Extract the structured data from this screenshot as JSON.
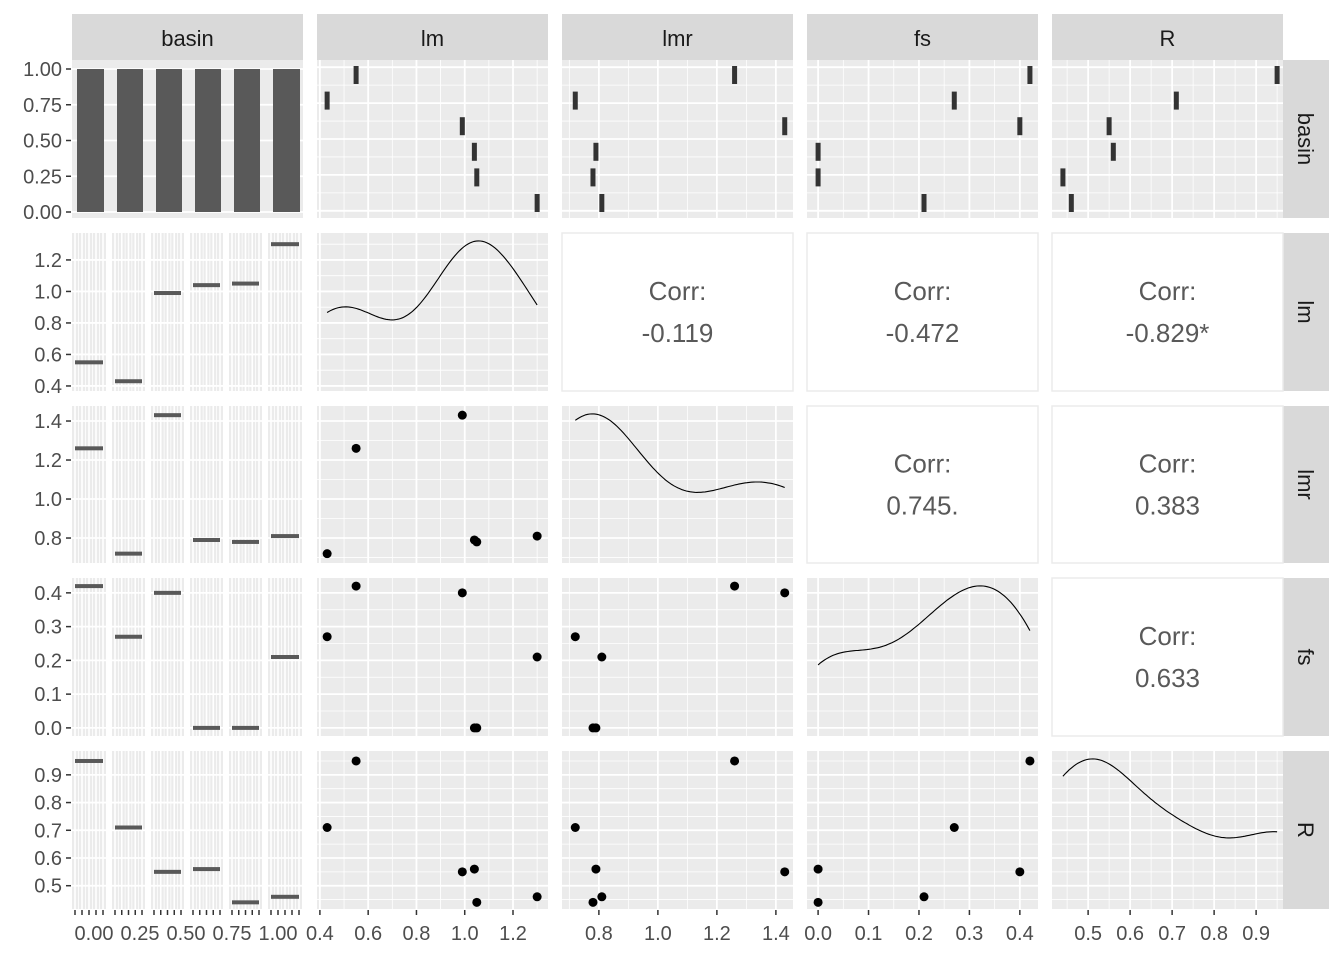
{
  "chart_data": {
    "type": "scatter-matrix",
    "title": "",
    "variables": [
      "basin",
      "lm",
      "lmr",
      "fs",
      "R"
    ],
    "strip_labels": [
      "basin",
      "lm",
      "lmr",
      "fs",
      "R"
    ],
    "basins": [
      "1",
      "2",
      "3",
      "4",
      "5",
      "6"
    ],
    "values": {
      "lm": [
        0.55,
        0.43,
        0.99,
        1.04,
        1.05,
        1.3
      ],
      "lmr": [
        1.26,
        0.72,
        1.43,
        0.79,
        0.78,
        0.81
      ],
      "fs": [
        0.42,
        0.27,
        0.4,
        0.0,
        0.0,
        0.21
      ],
      "R": [
        0.95,
        0.71,
        0.55,
        0.56,
        0.44,
        0.46
      ]
    },
    "correlations": [
      {
        "row": "lm",
        "col": "lmr",
        "label": "Corr:",
        "value": "-0.119"
      },
      {
        "row": "lm",
        "col": "fs",
        "label": "Corr:",
        "value": "-0.472"
      },
      {
        "row": "lm",
        "col": "R",
        "label": "Corr:",
        "value": "-0.829*"
      },
      {
        "row": "lmr",
        "col": "fs",
        "label": "Corr:",
        "value": "0.745."
      },
      {
        "row": "lmr",
        "col": "R",
        "label": "Corr:",
        "value": "0.383"
      },
      {
        "row": "fs",
        "col": "R",
        "label": "Corr:",
        "value": "0.633"
      }
    ],
    "axes": {
      "basin_y": {
        "range": [
          0,
          1
        ],
        "ticks": [
          0,
          0.25,
          0.5,
          0.75,
          1
        ],
        "labels": [
          "0.00",
          "0.25",
          "0.50",
          "0.75",
          "1.00"
        ]
      },
      "basin_x": {
        "range": [
          0,
          1
        ],
        "ticks": [
          0,
          0.25,
          0.5,
          0.75,
          1
        ],
        "labels": [
          "0.00",
          "0.25",
          "0.50",
          "0.75",
          "1.00"
        ]
      },
      "lm": {
        "xrange": [
          0.388,
          1.345
        ],
        "yrange": [
          0.368,
          1.371
        ],
        "ticks": [
          0.4,
          0.6,
          0.8,
          1.0,
          1.2
        ],
        "labels": [
          "0.4",
          "0.6",
          "0.8",
          "1.0",
          "1.2"
        ]
      },
      "lmr": {
        "xrange": [
          0.675,
          1.458
        ],
        "yrange": [
          0.672,
          1.477
        ],
        "ticks": [
          0.8,
          1.0,
          1.2,
          1.4
        ],
        "labels": [
          "0.8",
          "1.0",
          "1.2",
          "1.4"
        ]
      },
      "fs": {
        "xrange": [
          -0.022,
          0.436
        ],
        "yrange": [
          -0.024,
          0.444
        ],
        "ticks": [
          0.0,
          0.1,
          0.2,
          0.3,
          0.4
        ],
        "labels": [
          "0.0",
          "0.1",
          "0.2",
          "0.3",
          "0.4"
        ]
      },
      "R": {
        "xrange": [
          0.414,
          0.964
        ],
        "yrange": [
          0.416,
          0.986
        ],
        "ticks": [
          0.5,
          0.6,
          0.7,
          0.8,
          0.9
        ],
        "labels": [
          "0.5",
          "0.6",
          "0.7",
          "0.8",
          "0.9"
        ]
      }
    },
    "grid": true,
    "legend": "none"
  },
  "colors": {
    "panel": "#EBEBEB",
    "strip": "#D9D9D9",
    "bar": "#595959",
    "point": "#000000",
    "corr_text": "#595959",
    "axis_text": "#4D4D4D"
  }
}
